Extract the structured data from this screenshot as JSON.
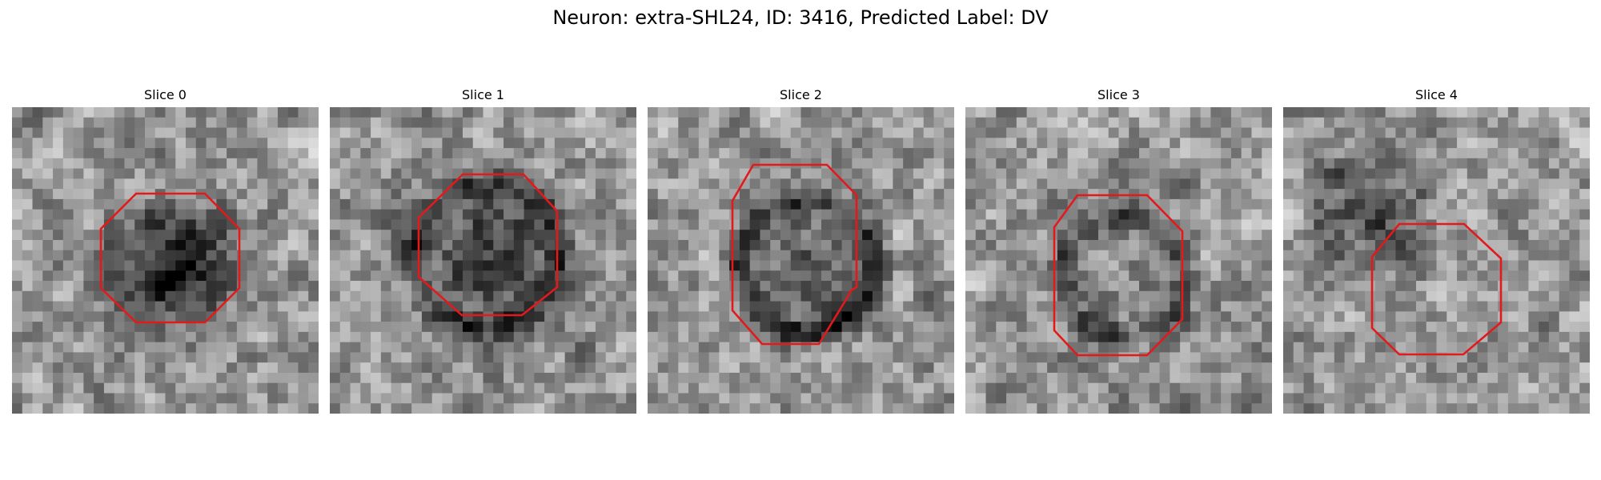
{
  "figure": {
    "title": "Neuron: extra-SHL24, ID: 3416, Predicted Label: DV",
    "outline_color": "#e31a1c",
    "colormap": "grayscale",
    "grid_size": 30
  },
  "panels": [
    {
      "title": "Slice 0",
      "seed": 11,
      "dark_blob": {
        "cx": 15,
        "cy": 15,
        "r": 5.5,
        "strength": 0.55
      },
      "ring_darkness": 0.0
    },
    {
      "title": "Slice 1",
      "seed": 23,
      "dark_blob": {
        "cx": 15,
        "cy": 14,
        "r": 7.0,
        "strength": 0.35
      },
      "ring_darkness": 0.25
    },
    {
      "title": "Slice 2",
      "seed": 37,
      "dark_blob": {
        "cx": 15,
        "cy": 15,
        "r": 6.5,
        "strength": 0.2
      },
      "ring_darkness": 0.35
    },
    {
      "title": "Slice 3",
      "seed": 41,
      "dark_blob": {
        "cx": 15,
        "cy": 16,
        "r": 6.0,
        "strength": 0.1
      },
      "ring_darkness": 0.25
    },
    {
      "title": "Slice 4",
      "seed": 53,
      "dark_blob": {
        "cx": 8,
        "cy": 10,
        "r": 5.0,
        "strength": 0.3
      },
      "ring_darkness": 0.1
    }
  ]
}
